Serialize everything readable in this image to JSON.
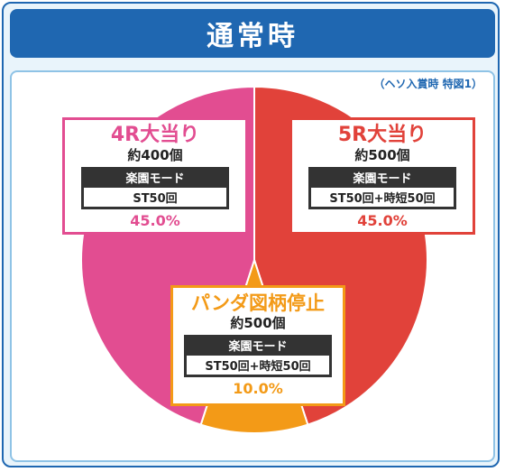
{
  "header": {
    "title": "通常時"
  },
  "note": "（ヘソ入賞時 特図1）",
  "chart_data": {
    "type": "pie",
    "title": "通常時",
    "subtitle": "（ヘソ入賞時 特図1）",
    "slices": [
      {
        "label": "5R大当り",
        "payout": "約500個",
        "mode": "楽園モード",
        "detail": "ST50回+時短50回",
        "value": 45.0,
        "value_label": "45.0%",
        "color": "#e1423a"
      },
      {
        "label": "パンダ図柄停止",
        "payout": "約500個",
        "mode": "楽園モード",
        "detail": "ST50回+時短50回",
        "value": 10.0,
        "value_label": "10.0%",
        "color": "#f39a17"
      },
      {
        "label": "4R大当り",
        "payout": "約400個",
        "mode": "楽園モード",
        "detail": "ST50回",
        "value": 45.0,
        "value_label": "45.0%",
        "color": "#e24d91"
      }
    ]
  },
  "colors": {
    "frame": "#1f67b1",
    "panel_border": "#8fc3e6",
    "background": "#e9f4fb"
  }
}
